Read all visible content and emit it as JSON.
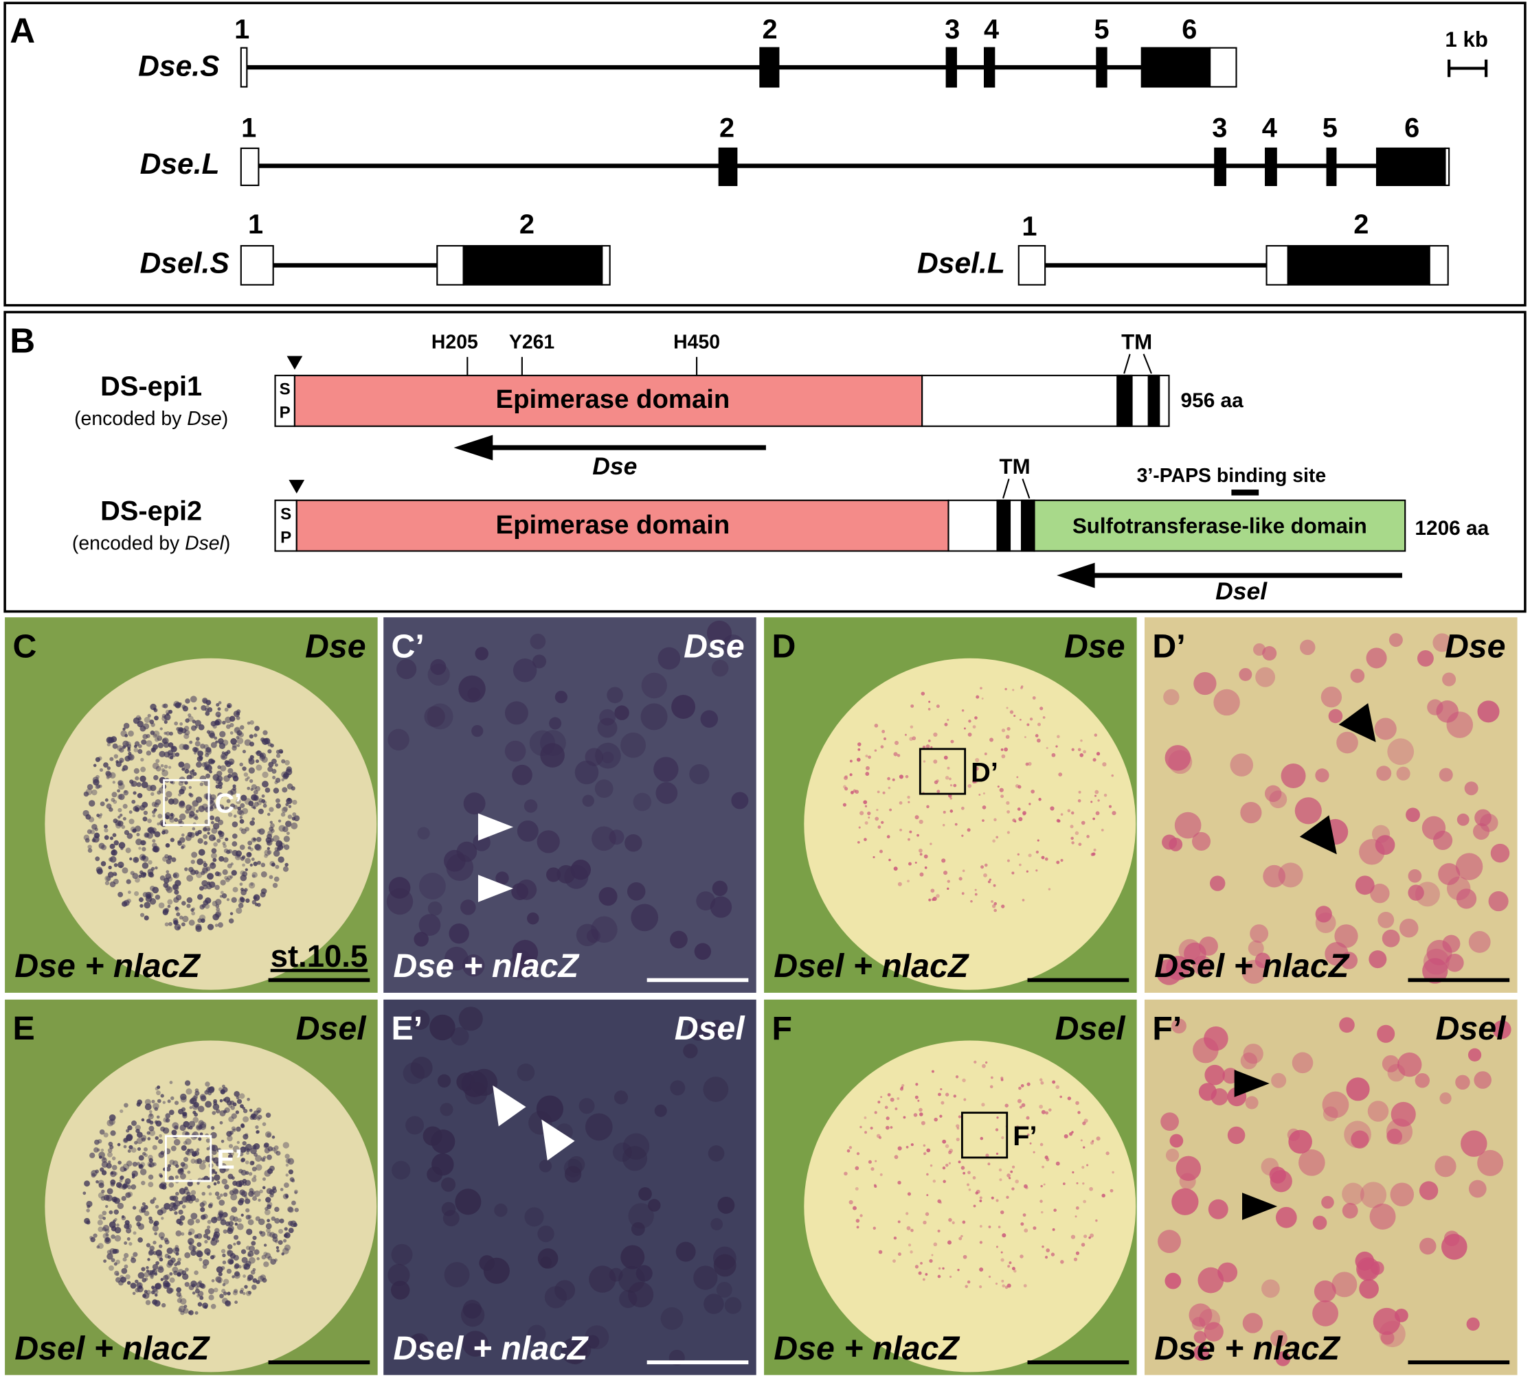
{
  "panel_a": {
    "letter": "A",
    "scale_label": "1 kb",
    "genes": [
      {
        "name": "Dse.S",
        "exons": [
          "1",
          "2",
          "3",
          "4",
          "5",
          "6"
        ]
      },
      {
        "name": "Dse.L",
        "exons": [
          "1",
          "2",
          "3",
          "4",
          "5",
          "6"
        ]
      },
      {
        "name": "Dsel.S",
        "exons": [
          "1",
          "2"
        ]
      },
      {
        "name": "Dsel.L",
        "exons": [
          "1",
          "2"
        ]
      }
    ]
  },
  "panel_b": {
    "letter": "B",
    "proteins": [
      {
        "name": "DS-epi1",
        "note": [
          "(encoded by ",
          "Dse",
          ")"
        ],
        "signal": [
          "S",
          "P"
        ],
        "domains": [
          "Epimerase domain"
        ],
        "sites": [
          "H205",
          "Y261",
          "H450"
        ],
        "tm": "TM",
        "length": "956 aa",
        "probe": "Dse"
      },
      {
        "name": "DS-epi2",
        "note": [
          "(encoded by ",
          "Dsel",
          ")"
        ],
        "signal": [
          "S",
          "P"
        ],
        "domains": [
          "Epimerase domain",
          "Sulfotransferase-like domain"
        ],
        "tm": "TM",
        "binding": "3’-PAPS binding site",
        "length": "1206 aa",
        "probe": "Dsel"
      }
    ]
  },
  "panels": [
    {
      "letter": "C",
      "probe": "Dse",
      "injection": "Dse + nlacZ",
      "stage": "st.10.5",
      "box": "C’"
    },
    {
      "letter": "C’",
      "probe": "Dse",
      "injection": "Dse + nlacZ"
    },
    {
      "letter": "D",
      "probe": "Dse",
      "injection": "Dsel + nlacZ",
      "box": "D’"
    },
    {
      "letter": "D’",
      "probe": "Dse",
      "injection": "Dsel + nlacZ"
    },
    {
      "letter": "E",
      "probe": "Dsel",
      "injection": "Dsel + nlacZ",
      "box": "E’"
    },
    {
      "letter": "E’",
      "probe": "Dsel",
      "injection": "Dsel + nlacZ"
    },
    {
      "letter": "F",
      "probe": "Dsel",
      "injection": "Dse + nlacZ",
      "box": "F’"
    },
    {
      "letter": "F’",
      "probe": "Dsel",
      "injection": "Dse + nlacZ"
    }
  ]
}
